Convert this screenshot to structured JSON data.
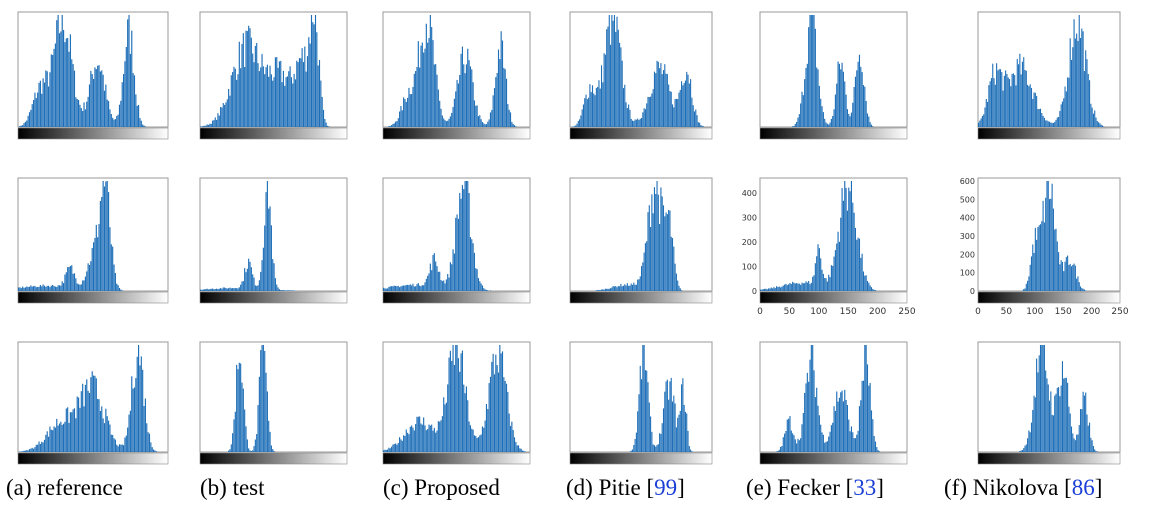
{
  "figure": {
    "bar_color": "#1f6fb8",
    "gradient_dark": "#000000",
    "gradient_light": "#ffffff",
    "caption_ref_color": "#1b3fd6",
    "columns": [
      {
        "prefix": "(a) reference",
        "ref": ""
      },
      {
        "prefix": "(b) test",
        "ref": ""
      },
      {
        "prefix": "(c) Proposed",
        "ref": ""
      },
      {
        "prefix": "(d) Pitie [",
        "ref": "99",
        "suffix": "]"
      },
      {
        "prefix": "(e) Fecker [",
        "ref": "33",
        "suffix": "]"
      },
      {
        "prefix": "(f) Nikolova [",
        "ref": "86",
        "suffix": "]"
      }
    ]
  },
  "chart_data": [
    {
      "type": "bar",
      "row": 1,
      "column": "(a) reference",
      "x": [
        0,
        255
      ],
      "peaks": [
        [
          0.3,
          0.06,
          1.0
        ],
        [
          0.53,
          0.05,
          0.62
        ],
        [
          0.74,
          0.035,
          0.9
        ],
        [
          0.15,
          0.05,
          0.35
        ]
      ]
    },
    {
      "type": "bar",
      "row": 1,
      "column": "(b) test",
      "x": [
        0,
        255
      ],
      "peaks": [
        [
          0.32,
          0.1,
          0.75
        ],
        [
          0.55,
          0.08,
          0.45
        ],
        [
          0.78,
          0.03,
          0.95
        ],
        [
          0.7,
          0.05,
          0.55
        ]
      ]
    },
    {
      "type": "bar",
      "row": 1,
      "column": "(c) Proposed",
      "x": [
        0,
        255
      ],
      "peaks": [
        [
          0.3,
          0.05,
          1.0
        ],
        [
          0.56,
          0.05,
          0.65
        ],
        [
          0.8,
          0.035,
          0.75
        ],
        [
          0.18,
          0.05,
          0.3
        ]
      ]
    },
    {
      "type": "bar",
      "row": 1,
      "column": "(d) Pitie [99]",
      "x": [
        0,
        255
      ],
      "peaks": [
        [
          0.3,
          0.06,
          1.0
        ],
        [
          0.63,
          0.07,
          0.55
        ],
        [
          0.82,
          0.04,
          0.55
        ],
        [
          0.14,
          0.04,
          0.35
        ]
      ]
    },
    {
      "type": "bar",
      "row": 1,
      "column": "(e) Fecker [33]",
      "x": [
        0,
        255
      ],
      "peaks": [
        [
          0.35,
          0.04,
          1.0
        ],
        [
          0.55,
          0.03,
          0.6
        ],
        [
          0.68,
          0.03,
          0.72
        ]
      ]
    },
    {
      "type": "bar",
      "row": 1,
      "column": "(f) Nikolova [86]",
      "x": [
        0,
        255
      ],
      "peaks": [
        [
          0.7,
          0.06,
          1.0
        ],
        [
          0.3,
          0.09,
          0.55
        ],
        [
          0.12,
          0.05,
          0.45
        ]
      ]
    },
    {
      "type": "bar",
      "row": 2,
      "column": "(a) reference",
      "x": [
        0,
        255
      ],
      "peaks": [
        [
          0.58,
          0.035,
          1.0
        ],
        [
          0.5,
          0.04,
          0.3
        ],
        [
          0.35,
          0.03,
          0.18
        ],
        [
          0.2,
          0.2,
          0.05
        ]
      ]
    },
    {
      "type": "bar",
      "row": 2,
      "column": "(b) test",
      "x": [
        0,
        255
      ],
      "peaks": [
        [
          0.46,
          0.025,
          1.0
        ],
        [
          0.33,
          0.025,
          0.25
        ],
        [
          0.25,
          0.2,
          0.03
        ]
      ]
    },
    {
      "type": "bar",
      "row": 2,
      "column": "(c) Proposed",
      "x": [
        0,
        255
      ],
      "peaks": [
        [
          0.55,
          0.05,
          1.0
        ],
        [
          0.35,
          0.03,
          0.25
        ],
        [
          0.25,
          0.2,
          0.06
        ]
      ]
    },
    {
      "type": "bar",
      "row": 2,
      "column": "(d) Pitie [99]",
      "x": [
        0,
        255
      ],
      "peaks": [
        [
          0.6,
          0.05,
          1.0
        ],
        [
          0.7,
          0.03,
          0.55
        ],
        [
          0.4,
          0.1,
          0.06
        ]
      ]
    },
    {
      "type": "bar",
      "row": 2,
      "column": "(e) Fecker [33]",
      "x": [
        0,
        250
      ],
      "ylim": [
        0,
        450
      ],
      "xticks": [
        0,
        50,
        100,
        150,
        200,
        250
      ],
      "yticks": [
        0,
        100,
        200,
        300,
        400
      ],
      "peaks": [
        [
          0.6,
          0.06,
          1.0
        ],
        [
          0.4,
          0.02,
          0.35
        ],
        [
          0.3,
          0.15,
          0.08
        ]
      ]
    },
    {
      "type": "bar",
      "row": 2,
      "column": "(f) Nikolova [86]",
      "x": [
        0,
        250
      ],
      "ylim": [
        0,
        600
      ],
      "xticks": [
        0,
        50,
        100,
        150,
        200,
        250
      ],
      "yticks": [
        0,
        100,
        200,
        300,
        400,
        500,
        600
      ],
      "peaks": [
        [
          0.5,
          0.045,
          1.0
        ],
        [
          0.4,
          0.03,
          0.4
        ],
        [
          0.65,
          0.04,
          0.3
        ]
      ]
    },
    {
      "type": "bar",
      "row": 3,
      "column": "(a) reference",
      "x": [
        0,
        255
      ],
      "peaks": [
        [
          0.8,
          0.04,
          1.0
        ],
        [
          0.5,
          0.08,
          0.6
        ],
        [
          0.3,
          0.1,
          0.3
        ]
      ]
    },
    {
      "type": "bar",
      "row": 3,
      "column": "(b) test",
      "x": [
        0,
        255
      ],
      "peaks": [
        [
          0.27,
          0.025,
          1.0
        ],
        [
          0.43,
          0.025,
          1.0
        ]
      ]
    },
    {
      "type": "bar",
      "row": 3,
      "column": "(c) Proposed",
      "x": [
        0,
        255
      ],
      "peaks": [
        [
          0.5,
          0.06,
          1.0
        ],
        [
          0.78,
          0.06,
          0.95
        ],
        [
          0.25,
          0.1,
          0.3
        ]
      ]
    },
    {
      "type": "bar",
      "row": 3,
      "column": "(d) Pitie [99]",
      "x": [
        0,
        255
      ],
      "peaks": [
        [
          0.52,
          0.03,
          1.0
        ],
        [
          0.7,
          0.04,
          0.65
        ],
        [
          0.8,
          0.02,
          0.6
        ]
      ]
    },
    {
      "type": "bar",
      "row": 3,
      "column": "(e) Fecker [33]",
      "x": [
        0,
        255
      ],
      "peaks": [
        [
          0.35,
          0.04,
          0.9
        ],
        [
          0.55,
          0.05,
          0.6
        ],
        [
          0.72,
          0.03,
          0.95
        ],
        [
          0.2,
          0.03,
          0.3
        ]
      ]
    },
    {
      "type": "bar",
      "row": 3,
      "column": "(f) Nikolova [86]",
      "x": [
        0,
        255
      ],
      "peaks": [
        [
          0.45,
          0.05,
          1.0
        ],
        [
          0.6,
          0.04,
          0.8
        ],
        [
          0.75,
          0.03,
          0.5
        ]
      ]
    }
  ]
}
